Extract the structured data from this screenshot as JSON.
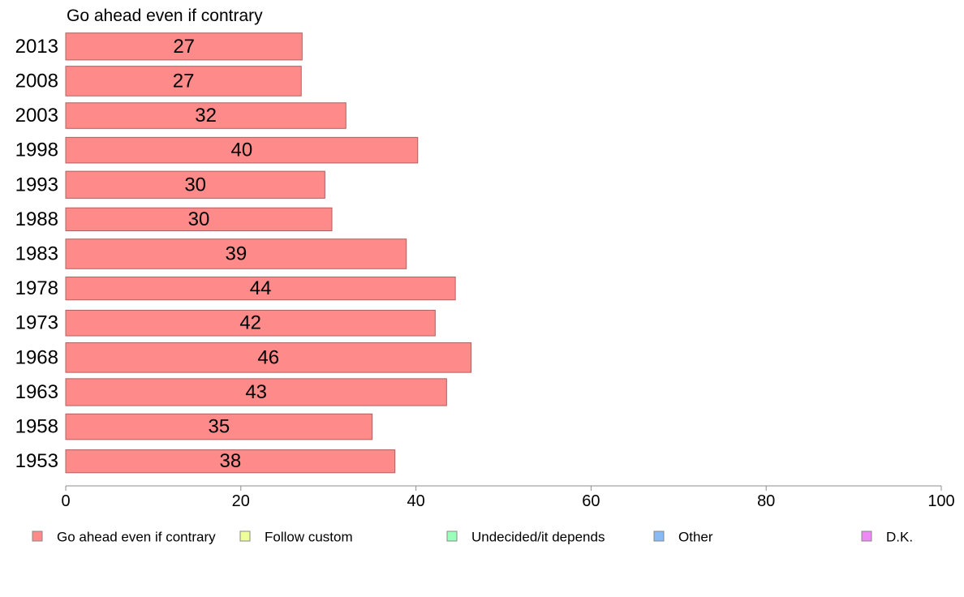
{
  "chart_data": {
    "type": "bar",
    "orientation": "horizontal",
    "series_title": "Go ahead even if contrary",
    "categories": [
      "2013",
      "2008",
      "2003",
      "1998",
      "1993",
      "1988",
      "1983",
      "1978",
      "1973",
      "1968",
      "1963",
      "1958",
      "1953"
    ],
    "series": [
      {
        "name": "Go ahead even if contrary",
        "values": [
          27,
          27,
          32,
          40,
          30,
          30,
          39,
          44,
          42,
          46,
          43,
          35,
          38
        ]
      }
    ],
    "bar_lengths": [
      27.0,
      26.9,
      32.0,
      40.2,
      29.6,
      30.4,
      38.9,
      44.5,
      42.2,
      46.3,
      43.5,
      35.0,
      37.6
    ],
    "bar_thickness": [
      1.0,
      1.1,
      0.95,
      0.95,
      1.0,
      0.85,
      1.1,
      0.85,
      0.95,
      1.1,
      1.0,
      0.95,
      0.85
    ],
    "xlim": [
      0,
      100
    ],
    "xticks": [
      0,
      20,
      40,
      60,
      80,
      100
    ],
    "grid": false,
    "legend_position": "bottom",
    "legend": [
      {
        "label": "Go ahead even if contrary",
        "color": "#ff8a8a"
      },
      {
        "label": "Follow custom",
        "color": "#eeff99"
      },
      {
        "label": "Undecided/it depends",
        "color": "#99ffbb"
      },
      {
        "label": "Other",
        "color": "#88bbf5"
      },
      {
        "label": "D.K.",
        "color": "#ee88f5"
      }
    ],
    "bar_color": "#ff8a8a",
    "bar_stroke": "#b06060"
  }
}
